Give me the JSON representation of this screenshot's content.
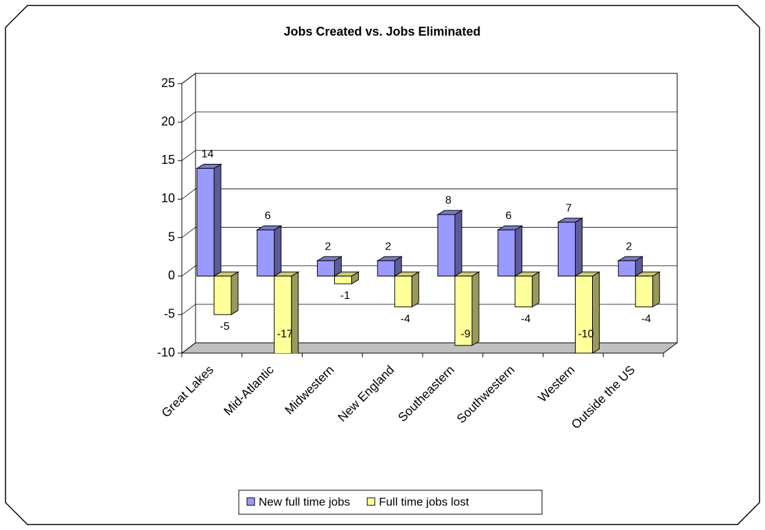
{
  "chart_data": {
    "type": "bar3d",
    "title": "Jobs Created vs. Jobs Eliminated",
    "categories": [
      "Great Lakes",
      "Mid-Atlantic",
      "Midwestern",
      "New England",
      "Southeastern",
      "Southwestern",
      "Western",
      "Outside the US"
    ],
    "series": [
      {
        "name": "New full time jobs",
        "color": "#9999ff",
        "values": [
          14,
          6,
          2,
          2,
          8,
          6,
          7,
          2
        ]
      },
      {
        "name": "Full time jobs lost",
        "color": "#ffff99",
        "values": [
          -5,
          -17,
          -1,
          -4,
          -9,
          -4,
          -10,
          -4
        ]
      }
    ],
    "ylim": [
      -10,
      25
    ],
    "yticks": [
      -10,
      -5,
      0,
      5,
      10,
      15,
      20,
      25
    ],
    "grid": true,
    "legend": "bottom"
  }
}
